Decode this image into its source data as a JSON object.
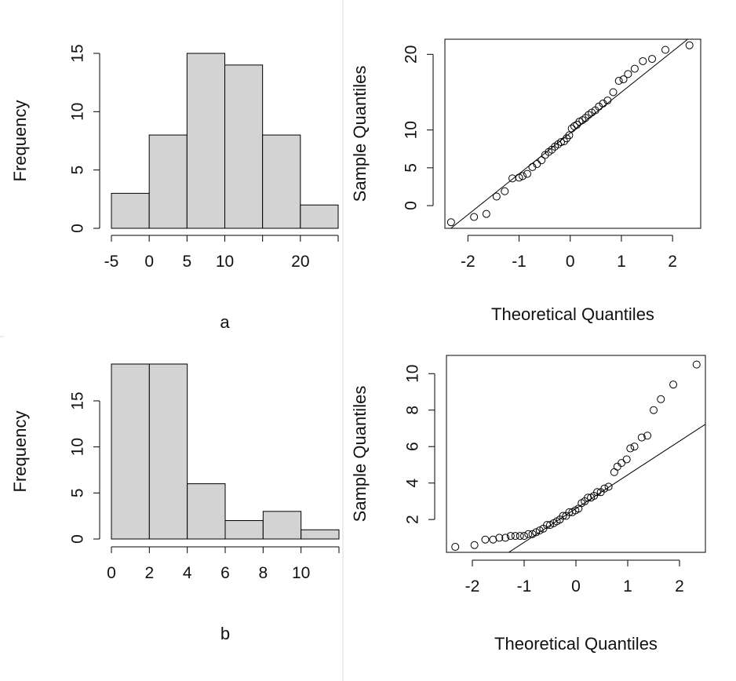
{
  "chart_data": [
    {
      "type": "bar",
      "subtype": "histogram",
      "panel": "top-left",
      "xlabel": "a",
      "ylabel": "Frequency",
      "bins": [
        [
          -5,
          0
        ],
        [
          0,
          5
        ],
        [
          5,
          10
        ],
        [
          10,
          15
        ],
        [
          15,
          20
        ],
        [
          20,
          25
        ]
      ],
      "values": [
        3,
        8,
        15,
        14,
        8,
        2
      ],
      "xlim": [
        -5,
        25
      ],
      "ylim": [
        0,
        15
      ],
      "xticks": [
        -5,
        0,
        5,
        10,
        20
      ],
      "yticks": [
        0,
        5,
        10,
        15
      ],
      "bar_color": "#d3d3d3"
    },
    {
      "type": "scatter",
      "subtype": "qq-plot",
      "panel": "top-right",
      "xlabel": "Theoretical Quantiles",
      "ylabel": "Sample Quantiles",
      "xlim": [
        -2.45,
        2.55
      ],
      "ylim": [
        -3,
        22
      ],
      "xticks": [
        -2,
        -1,
        0,
        1,
        2
      ],
      "yticks": [
        0,
        5,
        10,
        20
      ],
      "reference_line": {
        "intercept": 9.6,
        "slope": 5.4
      },
      "points": [
        [
          -2.33,
          -2.2
        ],
        [
          -1.88,
          -1.5
        ],
        [
          -1.64,
          -1.1
        ],
        [
          -1.44,
          1.2
        ],
        [
          -1.28,
          1.9
        ],
        [
          -1.13,
          3.6
        ],
        [
          -1.0,
          3.7
        ],
        [
          -0.93,
          3.9
        ],
        [
          -0.84,
          4.2
        ],
        [
          -0.74,
          5.1
        ],
        [
          -0.65,
          5.5
        ],
        [
          -0.56,
          6.0
        ],
        [
          -0.49,
          6.7
        ],
        [
          -0.42,
          7.1
        ],
        [
          -0.36,
          7.4
        ],
        [
          -0.3,
          7.8
        ],
        [
          -0.24,
          8.1
        ],
        [
          -0.18,
          8.4
        ],
        [
          -0.12,
          8.5
        ],
        [
          -0.07,
          8.9
        ],
        [
          -0.02,
          9.3
        ],
        [
          0.03,
          10.2
        ],
        [
          0.08,
          10.5
        ],
        [
          0.13,
          10.7
        ],
        [
          0.18,
          11.1
        ],
        [
          0.24,
          11.3
        ],
        [
          0.3,
          11.6
        ],
        [
          0.36,
          12.0
        ],
        [
          0.42,
          12.3
        ],
        [
          0.49,
          12.6
        ],
        [
          0.56,
          13.1
        ],
        [
          0.64,
          13.5
        ],
        [
          0.73,
          13.9
        ],
        [
          0.84,
          15.0
        ],
        [
          0.95,
          16.5
        ],
        [
          1.04,
          16.7
        ],
        [
          1.13,
          17.4
        ],
        [
          1.26,
          18.1
        ],
        [
          1.42,
          19.1
        ],
        [
          1.6,
          19.4
        ],
        [
          1.86,
          20.6
        ],
        [
          2.33,
          21.2
        ]
      ]
    },
    {
      "type": "bar",
      "subtype": "histogram",
      "panel": "bottom-left",
      "xlabel": "b",
      "ylabel": "Frequency",
      "bins": [
        [
          0,
          2
        ],
        [
          2,
          4
        ],
        [
          4,
          6
        ],
        [
          6,
          8
        ],
        [
          8,
          10
        ],
        [
          10,
          12
        ]
      ],
      "values": [
        19,
        19,
        6,
        2,
        3,
        1
      ],
      "xlim": [
        0,
        12
      ],
      "ylim": [
        0,
        19
      ],
      "xticks": [
        0,
        2,
        4,
        6,
        8,
        10
      ],
      "yticks": [
        0,
        5,
        10,
        15
      ],
      "bar_color": "#d3d3d3"
    },
    {
      "type": "scatter",
      "subtype": "qq-plot",
      "panel": "bottom-right",
      "xlabel": "Theoretical Quantiles",
      "ylabel": "Sample Quantiles",
      "xlim": [
        -2.5,
        2.5
      ],
      "ylim": [
        0.2,
        11
      ],
      "xticks": [
        -2,
        -1,
        0,
        1,
        2
      ],
      "yticks": [
        2,
        4,
        6,
        8,
        10
      ],
      "reference_line": {
        "intercept": 2.6,
        "slope": 1.85
      },
      "points": [
        [
          -2.33,
          0.5
        ],
        [
          -1.96,
          0.6
        ],
        [
          -1.75,
          0.9
        ],
        [
          -1.6,
          0.9
        ],
        [
          -1.48,
          1.0
        ],
        [
          -1.36,
          1.0
        ],
        [
          -1.26,
          1.1
        ],
        [
          -1.17,
          1.1
        ],
        [
          -1.08,
          1.1
        ],
        [
          -1.0,
          1.1
        ],
        [
          -0.92,
          1.2
        ],
        [
          -0.84,
          1.2
        ],
        [
          -0.77,
          1.3
        ],
        [
          -0.7,
          1.4
        ],
        [
          -0.63,
          1.5
        ],
        [
          -0.56,
          1.7
        ],
        [
          -0.5,
          1.7
        ],
        [
          -0.43,
          1.8
        ],
        [
          -0.37,
          1.9
        ],
        [
          -0.31,
          2.0
        ],
        [
          -0.25,
          2.2
        ],
        [
          -0.19,
          2.2
        ],
        [
          -0.13,
          2.4
        ],
        [
          -0.07,
          2.4
        ],
        [
          -0.01,
          2.5
        ],
        [
          0.05,
          2.6
        ],
        [
          0.11,
          2.9
        ],
        [
          0.17,
          3.0
        ],
        [
          0.23,
          3.2
        ],
        [
          0.29,
          3.2
        ],
        [
          0.35,
          3.3
        ],
        [
          0.41,
          3.5
        ],
        [
          0.48,
          3.5
        ],
        [
          0.55,
          3.7
        ],
        [
          0.63,
          3.8
        ],
        [
          0.74,
          4.6
        ],
        [
          0.8,
          4.9
        ],
        [
          0.88,
          5.1
        ],
        [
          0.98,
          5.3
        ],
        [
          1.05,
          5.9
        ],
        [
          1.13,
          6.0
        ],
        [
          1.27,
          6.5
        ],
        [
          1.38,
          6.6
        ],
        [
          1.5,
          8.0
        ],
        [
          1.64,
          8.6
        ],
        [
          1.88,
          9.4
        ],
        [
          2.33,
          10.5
        ]
      ]
    }
  ]
}
